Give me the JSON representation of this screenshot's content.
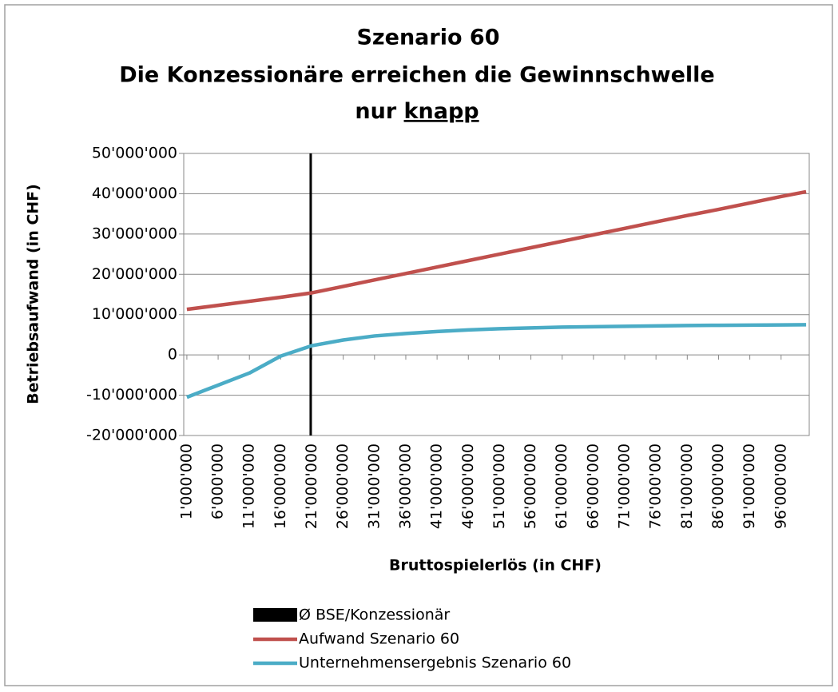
{
  "chart_data": {
    "type": "line",
    "title": [
      "Szenario 60",
      "Die Konzessionäre erreichen die Gewinnschwelle"
    ],
    "title_last_line": "nur",
    "title_underlined": "knapp",
    "x_label": "Bruttospielerlös (in CHF)",
    "y_label": "Betriebsaufwand (in CHF)",
    "x": [
      1000000,
      6000000,
      11000000,
      16000000,
      21000000,
      26000000,
      31000000,
      36000000,
      41000000,
      46000000,
      51000000,
      56000000,
      61000000,
      66000000,
      71000000,
      76000000,
      81000000,
      86000000,
      91000000,
      96000000,
      100000000
    ],
    "series": [
      {
        "name": "Aufwand Szenario 60",
        "color": "#c0504d",
        "values": [
          11300000,
          12300000,
          13300000,
          14300000,
          15400000,
          17000000,
          18600000,
          20200000,
          21800000,
          23400000,
          25000000,
          26600000,
          28200000,
          29800000,
          31400000,
          33000000,
          34600000,
          36100000,
          37700000,
          39300000,
          40500000
        ]
      },
      {
        "name": "Unternehmensergebnis Szenario 60",
        "color": "#4bacc6",
        "values": [
          -10500000,
          -7500000,
          -4500000,
          -300000,
          2300000,
          3700000,
          4700000,
          5300000,
          5800000,
          6200000,
          6500000,
          6700000,
          6900000,
          7000000,
          7100000,
          7200000,
          7300000,
          7350000,
          7400000,
          7450000,
          7500000
        ]
      }
    ],
    "reference_line": {
      "name": "Ø BSE/Konzessionär",
      "color": "#000000",
      "x": 20800000
    },
    "xlim": [
      500000,
      100500000
    ],
    "xticks": [
      {
        "value": 1000000,
        "label": "1'000'000"
      },
      {
        "value": 6000000,
        "label": "6'000'000"
      },
      {
        "value": 11000000,
        "label": "11'000'000"
      },
      {
        "value": 16000000,
        "label": "16'000'000"
      },
      {
        "value": 21000000,
        "label": "21'000'000"
      },
      {
        "value": 26000000,
        "label": "26'000'000"
      },
      {
        "value": 31000000,
        "label": "31'000'000"
      },
      {
        "value": 36000000,
        "label": "36'000'000"
      },
      {
        "value": 41000000,
        "label": "41'000'000"
      },
      {
        "value": 46000000,
        "label": "46'000'000"
      },
      {
        "value": 51000000,
        "label": "51'000'000"
      },
      {
        "value": 56000000,
        "label": "56'000'000"
      },
      {
        "value": 61000000,
        "label": "61'000'000"
      },
      {
        "value": 66000000,
        "label": "66'000'000"
      },
      {
        "value": 71000000,
        "label": "71'000'000"
      },
      {
        "value": 76000000,
        "label": "76'000'000"
      },
      {
        "value": 81000000,
        "label": "81'000'000"
      },
      {
        "value": 86000000,
        "label": "86'000'000"
      },
      {
        "value": 91000000,
        "label": "91'000'000"
      },
      {
        "value": 96000000,
        "label": "96'000'000"
      }
    ],
    "ylim": [
      -20000000,
      50000000
    ],
    "yticks": [
      {
        "value": -20000000,
        "label": "-20'000'000"
      },
      {
        "value": -10000000,
        "label": "-10'000'000"
      },
      0,
      {
        "value": 10000000,
        "label": "10'000'000"
      },
      {
        "value": 20000000,
        "label": "20'000'000"
      },
      {
        "value": 30000000,
        "label": "30'000'000"
      },
      {
        "value": 40000000,
        "label": "40'000'000"
      },
      {
        "value": 50000000,
        "label": "50'000'000"
      }
    ],
    "grid": true
  }
}
